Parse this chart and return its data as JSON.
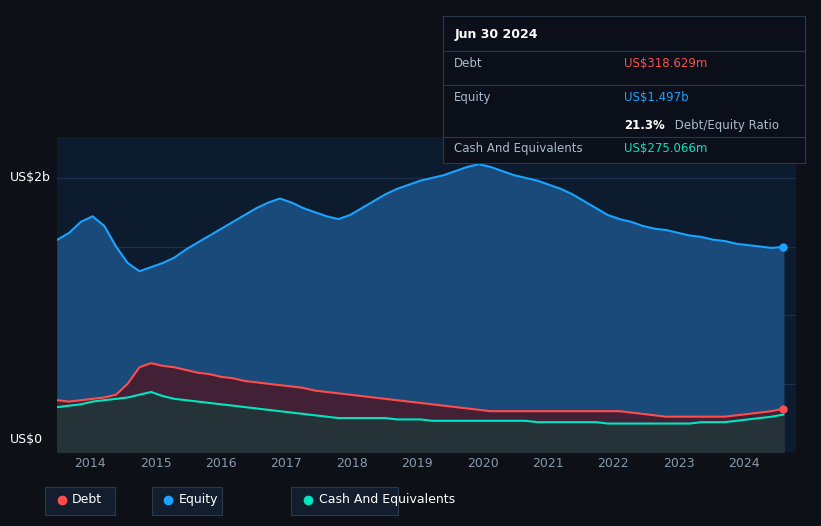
{
  "background_color": "#0d1117",
  "plot_bg_color": "#0d1b2e",
  "tooltip_title": "Jun 30 2024",
  "grid_color": "#1e3050",
  "ylabel_top": "US$2b",
  "ylabel_bottom": "US$0",
  "x_ticks": [
    2014,
    2015,
    2016,
    2017,
    2018,
    2019,
    2020,
    2021,
    2022,
    2023,
    2024
  ],
  "equity_color": "#1aa3ff",
  "debt_color": "#ff4d4d",
  "cash_color": "#00e6c3",
  "equity_fill": "#1a4a7a",
  "debt_fill": "#4a1a2a",
  "cash_fill": "#1a3a3a",
  "tooltip_bg": "#0a0f1a",
  "tooltip_border": "#2a3a4a",
  "divider_color": "#2a3a4a",
  "tooltip_debt_label": "Debt",
  "tooltip_debt_value": "US$318.629m",
  "tooltip_equity_label": "Equity",
  "tooltip_equity_value": "US$1.497b",
  "tooltip_ratio_bold": "21.3%",
  "tooltip_ratio_text": " Debt/Equity Ratio",
  "tooltip_cash_label": "Cash And Equivalents",
  "tooltip_cash_value": "US$275.066m",
  "equity_data": [
    1.55,
    1.6,
    1.68,
    1.72,
    1.65,
    1.5,
    1.38,
    1.32,
    1.35,
    1.38,
    1.42,
    1.48,
    1.53,
    1.58,
    1.63,
    1.68,
    1.73,
    1.78,
    1.82,
    1.85,
    1.82,
    1.78,
    1.75,
    1.72,
    1.7,
    1.73,
    1.78,
    1.83,
    1.88,
    1.92,
    1.95,
    1.98,
    2.0,
    2.02,
    2.05,
    2.08,
    2.1,
    2.08,
    2.05,
    2.02,
    2.0,
    1.98,
    1.95,
    1.92,
    1.88,
    1.83,
    1.78,
    1.73,
    1.7,
    1.68,
    1.65,
    1.63,
    1.62,
    1.6,
    1.58,
    1.57,
    1.55,
    1.54,
    1.52,
    1.51,
    1.5,
    1.49,
    1.497
  ],
  "debt_data": [
    0.38,
    0.37,
    0.38,
    0.39,
    0.4,
    0.42,
    0.5,
    0.62,
    0.65,
    0.63,
    0.62,
    0.6,
    0.58,
    0.57,
    0.55,
    0.54,
    0.52,
    0.51,
    0.5,
    0.49,
    0.48,
    0.47,
    0.45,
    0.44,
    0.43,
    0.42,
    0.41,
    0.4,
    0.39,
    0.38,
    0.37,
    0.36,
    0.35,
    0.34,
    0.33,
    0.32,
    0.31,
    0.3,
    0.3,
    0.3,
    0.3,
    0.3,
    0.3,
    0.3,
    0.3,
    0.3,
    0.3,
    0.3,
    0.3,
    0.29,
    0.28,
    0.27,
    0.26,
    0.26,
    0.26,
    0.26,
    0.26,
    0.26,
    0.27,
    0.28,
    0.29,
    0.3,
    0.3186
  ],
  "cash_data": [
    0.33,
    0.34,
    0.35,
    0.37,
    0.38,
    0.39,
    0.4,
    0.42,
    0.44,
    0.41,
    0.39,
    0.38,
    0.37,
    0.36,
    0.35,
    0.34,
    0.33,
    0.32,
    0.31,
    0.3,
    0.29,
    0.28,
    0.27,
    0.26,
    0.25,
    0.25,
    0.25,
    0.25,
    0.25,
    0.24,
    0.24,
    0.24,
    0.23,
    0.23,
    0.23,
    0.23,
    0.23,
    0.23,
    0.23,
    0.23,
    0.23,
    0.22,
    0.22,
    0.22,
    0.22,
    0.22,
    0.22,
    0.21,
    0.21,
    0.21,
    0.21,
    0.21,
    0.21,
    0.21,
    0.21,
    0.22,
    0.22,
    0.22,
    0.23,
    0.24,
    0.25,
    0.26,
    0.2751
  ],
  "legend_items": [
    {
      "label": "Debt",
      "color": "#ff4d4d"
    },
    {
      "label": "Equity",
      "color": "#1aa3ff"
    },
    {
      "label": "Cash And Equivalents",
      "color": "#00e6c3"
    }
  ]
}
